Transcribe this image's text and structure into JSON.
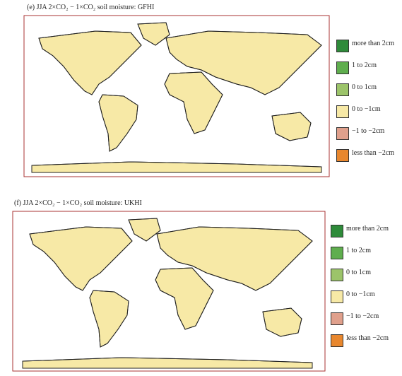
{
  "panels": [
    {
      "title": "(e) JJA 2×CO₂ − 1×CO₂ soil moisture: GFHI",
      "legend": [
        {
          "label": "more than 2cm",
          "color": "#2e8b3a"
        },
        {
          "label": "1 to 2cm",
          "color": "#5fae4e"
        },
        {
          "label": "0 to 1cm",
          "color": "#9cc46a"
        },
        {
          "label": "0 to −1cm",
          "color": "#f7e9a6"
        },
        {
          "label": "−1 to −2cm",
          "color": "#e0a08c"
        },
        {
          "label": "less than −2cm",
          "color": "#e8872e"
        }
      ]
    },
    {
      "title": "(f) JJA 2×CO₂ − 1×CO₂ soil moisture: UKHI",
      "legend": [
        {
          "label": "more than 2cm",
          "color": "#2e8b3a"
        },
        {
          "label": "1 to 2cm",
          "color": "#5fae4e"
        },
        {
          "label": "0 to 1cm",
          "color": "#9cc46a"
        },
        {
          "label": "0 to −1cm",
          "color": "#f7e9a6"
        },
        {
          "label": "−1 to −2cm",
          "color": "#e0a08c"
        },
        {
          "label": "less than −2cm",
          "color": "#e8872e"
        }
      ]
    }
  ]
}
